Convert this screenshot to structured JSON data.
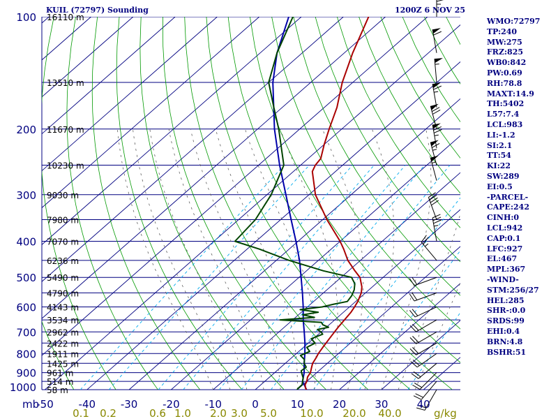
{
  "header": {
    "station": "KUIL (72797) Sounding",
    "time": "1200Z  6 NOV 25"
  },
  "indices": [
    "WMO:72797",
    "TP:240",
    "MW:275",
    "FRZ:825",
    "WB0:842",
    "PW:0.69",
    "RH:78.8",
    "MAXT:14.9",
    "TH:5402",
    "L57:7.4",
    "LCL:983",
    "LI:-1.2",
    "SI:2.1",
    "TT:54",
    "KI:22",
    "SW:289",
    "EI:0.5",
    "-PARCEL-",
    "CAPE:242",
    "CINH:0",
    "LCL:942",
    "CAP:0.1",
    "LFC:927",
    "EL:467",
    "MPL:367",
    "-WIND-",
    "STM:256/27",
    "HEL:285",
    "SHR-:0.0",
    "SRDS:99",
    "EHI:0.4",
    "BRN:4.8",
    "BSHR:51"
  ],
  "colors": {
    "isobar": "#000080",
    "isotherm": "#000080",
    "dry_adiabat": "#009900",
    "mixing_ratio": "#00aaee",
    "moist_adiabat": "#606060",
    "temperature": "#aa0000",
    "dewpoint": "#004400",
    "parcel": "#0000aa",
    "label": "#000080",
    "mix_label": "#888800"
  },
  "chart_data": {
    "type": "skew-t",
    "pressure_labels": [
      "100",
      "200",
      "300",
      "400",
      "500",
      "600",
      "700",
      "800",
      "900",
      "1000"
    ],
    "xlabel_prefix": "mb",
    "temp_ticks": [
      {
        "t": -50,
        "label": "-50"
      },
      {
        "t": -40,
        "label": "-40"
      },
      {
        "t": -30,
        "label": "-30"
      },
      {
        "t": -20,
        "label": "-20"
      },
      {
        "t": -10,
        "label": "-10"
      },
      {
        "t": 0,
        "label": "0"
      },
      {
        "t": 10,
        "label": "10"
      },
      {
        "t": 20,
        "label": "20"
      },
      {
        "t": 30,
        "label": "30"
      },
      {
        "t": 40,
        "label": "40"
      }
    ],
    "mix_ratio_labels": [
      {
        "w": 0.1,
        "label": "0.1"
      },
      {
        "w": 0.2,
        "label": "0.2"
      },
      {
        "w": 0.6,
        "label": "0.6"
      },
      {
        "w": 1.0,
        "label": "1.0"
      },
      {
        "w": 2.0,
        "label": "2.0"
      },
      {
        "w": 3.0,
        "label": "3.0"
      },
      {
        "w": 5.0,
        "label": "5.0"
      },
      {
        "w": 10.0,
        "label": "10.0"
      },
      {
        "w": 20.0,
        "label": "20.0"
      },
      {
        "w": 40.0,
        "label": "40.0"
      }
    ],
    "mix_unit": "g/kg",
    "height_levels": [
      {
        "p": 100,
        "label": "16110 m"
      },
      {
        "p": 150,
        "label": "13510 m"
      },
      {
        "p": 200,
        "label": "11670 m"
      },
      {
        "p": 250,
        "label": "10230 m"
      },
      {
        "p": 300,
        "label": "9030 m"
      },
      {
        "p": 350,
        "label": "7980 m"
      },
      {
        "p": 400,
        "label": "7070 m"
      },
      {
        "p": 450,
        "label": "6236 m"
      },
      {
        "p": 500,
        "label": "5490 m"
      },
      {
        "p": 550,
        "label": "4790 m"
      },
      {
        "p": 600,
        "label": "4143 m"
      },
      {
        "p": 650,
        "label": "3534 m"
      },
      {
        "p": 700,
        "label": "2962 m"
      },
      {
        "p": 750,
        "label": "2422 m"
      },
      {
        "p": 800,
        "label": "1911 m"
      },
      {
        "p": 850,
        "label": "1425 m"
      },
      {
        "p": 900,
        "label": "961 m"
      },
      {
        "p": 950,
        "label": "514 m"
      },
      {
        "p": 1000,
        "label": "58 m"
      }
    ],
    "temperature": {
      "name": "Temperature",
      "p": [
        1005,
        990,
        970,
        950,
        925,
        900,
        875,
        850,
        820,
        800,
        770,
        750,
        720,
        700,
        680,
        650,
        620,
        600,
        580,
        560,
        550,
        530,
        500,
        480,
        450,
        420,
        400,
        350,
        300,
        260,
        250,
        240,
        220,
        200,
        175,
        150,
        125,
        100
      ],
      "t": [
        12.5,
        11.5,
        10.5,
        10.0,
        9.0,
        8.5,
        7.5,
        6.5,
        5.8,
        5.2,
        4.6,
        4.2,
        3.6,
        3.2,
        2.8,
        2.3,
        1.8,
        1.2,
        0.5,
        -0.5,
        -1.0,
        -2.5,
        -5.5,
        -8.5,
        -13.0,
        -17.0,
        -20.0,
        -29.0,
        -38.5,
        -45.5,
        -46.5,
        -47.0,
        -50.0,
        -53.0,
        -57.0,
        -62.5,
        -68.0,
        -74.0
      ]
    },
    "dewpoint": {
      "name": "Dewpoint",
      "p": [
        1005,
        990,
        970,
        950,
        930,
        910,
        890,
        870,
        850,
        830,
        810,
        790,
        770,
        750,
        730,
        710,
        700,
        690,
        680,
        670,
        660,
        650,
        640,
        630,
        620,
        610,
        600,
        590,
        580,
        560,
        540,
        520,
        500,
        480,
        450,
        420,
        400,
        350,
        300,
        250,
        200,
        175,
        150,
        125,
        100
      ],
      "td": [
        10.0,
        9.8,
        9.8,
        9.0,
        8.2,
        7.0,
        5.8,
        6.0,
        4.5,
        3.5,
        1.5,
        2.6,
        0.8,
        1.6,
        -0.5,
        1.0,
        0.0,
        -1.5,
        0.5,
        -1.5,
        -2.5,
        -13.0,
        -5.5,
        -9.0,
        -6.0,
        -11.0,
        -6.5,
        -4.5,
        -2.0,
        -2.5,
        -3.5,
        -5.0,
        -7.5,
        -16.0,
        -27.0,
        -37.0,
        -45.0,
        -46.0,
        -49.0,
        -54.0,
        -65.0,
        -72.0,
        -80.0,
        -86.0,
        -92.0
      ]
    },
    "parcel": {
      "name": "Parcel",
      "p": [
        1005,
        950,
        900,
        850,
        800,
        750,
        700,
        650,
        600,
        550,
        500,
        450,
        400,
        350,
        300,
        250,
        200,
        150,
        125,
        100
      ],
      "t": [
        12.5,
        9.0,
        7.0,
        4.5,
        2.0,
        -0.8,
        -4.0,
        -7.5,
        -11.0,
        -15.0,
        -19.5,
        -24.5,
        -30.5,
        -37.5,
        -45.5,
        -55.0,
        -66.0,
        -79.0,
        -86.0,
        -93.0
      ]
    },
    "winds": [
      {
        "p": 100,
        "dir": 0,
        "spd": 45
      },
      {
        "p": 125,
        "dir": 350,
        "spd": 60
      },
      {
        "p": 150,
        "dir": 355,
        "spd": 55
      },
      {
        "p": 175,
        "dir": 350,
        "spd": 65
      },
      {
        "p": 200,
        "dir": 345,
        "spd": 70
      },
      {
        "p": 225,
        "dir": 350,
        "spd": 75
      },
      {
        "p": 250,
        "dir": 345,
        "spd": 65
      },
      {
        "p": 275,
        "dir": 345,
        "spd": 55
      },
      {
        "p": 350,
        "dir": 340,
        "spd": 40
      },
      {
        "p": 400,
        "dir": 350,
        "spd": 35
      },
      {
        "p": 450,
        "dir": 320,
        "spd": 25
      },
      {
        "p": 500,
        "dir": 250,
        "spd": 20
      },
      {
        "p": 550,
        "dir": 250,
        "spd": 20
      },
      {
        "p": 600,
        "dir": 245,
        "spd": 20
      },
      {
        "p": 650,
        "dir": 240,
        "spd": 20
      },
      {
        "p": 700,
        "dir": 240,
        "spd": 20
      },
      {
        "p": 750,
        "dir": 240,
        "spd": 20
      },
      {
        "p": 800,
        "dir": 235,
        "spd": 20
      },
      {
        "p": 850,
        "dir": 230,
        "spd": 20
      },
      {
        "p": 900,
        "dir": 225,
        "spd": 20
      },
      {
        "p": 950,
        "dir": 220,
        "spd": 20
      },
      {
        "p": 1000,
        "dir": 210,
        "spd": 20
      }
    ]
  }
}
